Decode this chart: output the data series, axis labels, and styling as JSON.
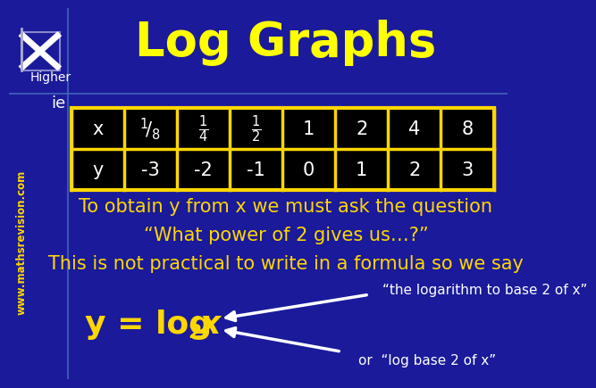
{
  "title": "Log Graphs",
  "title_color": "#FFFF00",
  "title_fontsize": 38,
  "bg_color": "#1a1a9a",
  "table_border_color": "#FFD700",
  "table_bg_color": "#000000",
  "table_text_color": "#FFFFFF",
  "higher_text": "Higher",
  "higher_color": "#FFFFFF",
  "ie_text": "ie",
  "ie_color": "#FFFFFF",
  "website_text": "www.mathsrevision.com",
  "website_color": "#FFD700",
  "line1": "To obtain y from x we must ask the question",
  "line2": "“What power of 2 gives us…?”",
  "line3": "This is not practical to write in a formula so we say",
  "body_text_color": "#FFD700",
  "body_fontsize": 15,
  "formula_color": "#FFD700",
  "formula_fontsize": 26,
  "arrow_label": "“the logarithm to base 2 of x”",
  "arrow_label2": "or  “log base 2 of x”",
  "x_row": [
    "x",
    "$^1\\!/_8$",
    "$\\frac{1}{4}$",
    "$\\frac{1}{2}$",
    "1",
    "2",
    "4",
    "8"
  ],
  "y_row": [
    "y",
    "-3",
    "-2",
    "-1",
    "0",
    "1",
    "2",
    "3"
  ]
}
